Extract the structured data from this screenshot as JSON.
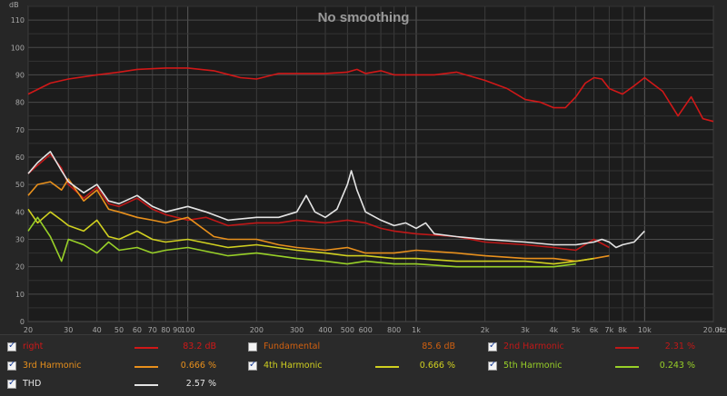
{
  "chart_data": {
    "type": "line",
    "title": "No smoothing",
    "ylabel": "dB",
    "xlabel": "Hz",
    "ylim": [
      0,
      115
    ],
    "xlim": [
      20,
      20000
    ],
    "x_scale": "log",
    "y_ticks": [
      0,
      10,
      20,
      30,
      40,
      50,
      60,
      70,
      80,
      90,
      100,
      110
    ],
    "x_ticks": [
      {
        "v": 20,
        "l": "20"
      },
      {
        "v": 30,
        "l": "30"
      },
      {
        "v": 40,
        "l": "40"
      },
      {
        "v": 50,
        "l": "50"
      },
      {
        "v": 60,
        "l": "60"
      },
      {
        "v": 70,
        "l": "70"
      },
      {
        "v": 80,
        "l": "80"
      },
      {
        "v": 90,
        "l": "90"
      },
      {
        "v": 100,
        "l": "100"
      },
      {
        "v": 200,
        "l": "200"
      },
      {
        "v": 300,
        "l": "300"
      },
      {
        "v": 400,
        "l": "400"
      },
      {
        "v": 500,
        "l": "500"
      },
      {
        "v": 600,
        "l": "600"
      },
      {
        "v": 800,
        "l": "800"
      },
      {
        "v": 1000,
        "l": "1k"
      },
      {
        "v": 2000,
        "l": "2k"
      },
      {
        "v": 3000,
        "l": "3k"
      },
      {
        "v": 4000,
        "l": "4k"
      },
      {
        "v": 5000,
        "l": "5k"
      },
      {
        "v": 6000,
        "l": "6k"
      },
      {
        "v": 7000,
        "l": "7k"
      },
      {
        "v": 8000,
        "l": "8k"
      },
      {
        "v": 10000,
        "l": "10k"
      },
      {
        "v": 20000,
        "l": "20.0k"
      }
    ],
    "grid": true,
    "series": [
      {
        "name": "right",
        "color": "#d01818",
        "x": [
          20,
          25,
          30,
          40,
          50,
          60,
          80,
          100,
          130,
          170,
          200,
          250,
          300,
          400,
          500,
          550,
          600,
          700,
          800,
          1000,
          1200,
          1500,
          2000,
          2500,
          3000,
          3500,
          4000,
          4500,
          5000,
          5500,
          6000,
          6500,
          7000,
          8000,
          9000,
          10000,
          12000,
          14000,
          16000,
          18000,
          20000
        ],
        "y": [
          83,
          87,
          88.5,
          90,
          91,
          92,
          92.5,
          92.5,
          91.5,
          89,
          88.5,
          90.5,
          90.5,
          90.5,
          91,
          92,
          90.5,
          91.5,
          90,
          90,
          90,
          91,
          88,
          85,
          81,
          80,
          78,
          78,
          82,
          87,
          89,
          88.5,
          85,
          83,
          86,
          89,
          84,
          75,
          82,
          74,
          73
        ]
      },
      {
        "name": "2nd Harmonic",
        "color": "#c01818",
        "x": [
          20,
          22,
          25,
          28,
          30,
          35,
          40,
          45,
          50,
          60,
          70,
          80,
          100,
          120,
          150,
          200,
          250,
          300,
          400,
          500,
          600,
          700,
          800,
          1000,
          1500,
          2000,
          3000,
          4000,
          5000,
          6000,
          7000
        ],
        "y": [
          54,
          57,
          61,
          56,
          50,
          45,
          49,
          43,
          42,
          45,
          41,
          39,
          37,
          38,
          35,
          36,
          36,
          37,
          36,
          37,
          36,
          34,
          33,
          32,
          31,
          29,
          28,
          27,
          26,
          30,
          27
        ]
      },
      {
        "name": "3rd Harmonic",
        "color": "#e8901c",
        "x": [
          20,
          22,
          25,
          28,
          30,
          35,
          40,
          45,
          50,
          60,
          70,
          80,
          100,
          130,
          150,
          200,
          250,
          300,
          400,
          500,
          600,
          800,
          1000,
          1500,
          2000,
          3000,
          4000,
          5000,
          6000,
          7000
        ],
        "y": [
          46,
          50,
          51,
          48,
          52,
          44,
          48,
          41,
          40,
          38,
          37,
          36,
          38,
          31,
          30,
          30,
          28,
          27,
          26,
          27,
          25,
          25,
          26,
          25,
          24,
          23,
          23,
          22,
          23,
          24
        ]
      },
      {
        "name": "4th Harmonic",
        "color": "#d0d020",
        "x": [
          20,
          22,
          25,
          28,
          30,
          35,
          40,
          45,
          50,
          60,
          70,
          80,
          100,
          150,
          200,
          300,
          400,
          500,
          600,
          800,
          1000,
          1500,
          2000,
          3000,
          4000,
          5000,
          6000
        ],
        "y": [
          41,
          36,
          40,
          37,
          35,
          33,
          37,
          31,
          30,
          33,
          30,
          29,
          30,
          27,
          28,
          26,
          25,
          24,
          24,
          23,
          23,
          22,
          22,
          22,
          21,
          22,
          23
        ]
      },
      {
        "name": "5th Harmonic",
        "color": "#98d028",
        "x": [
          20,
          22,
          25,
          28,
          30,
          35,
          40,
          45,
          50,
          60,
          70,
          80,
          100,
          150,
          200,
          300,
          400,
          500,
          600,
          800,
          1000,
          1500,
          2000,
          3000,
          4000,
          5000
        ],
        "y": [
          33,
          38,
          31,
          22,
          30,
          28,
          25,
          29,
          26,
          27,
          25,
          26,
          27,
          24,
          25,
          23,
          22,
          21,
          22,
          21,
          21,
          20,
          20,
          20,
          20,
          21
        ]
      },
      {
        "name": "THD",
        "color": "#e4e4e4",
        "x": [
          20,
          22,
          25,
          28,
          30,
          35,
          40,
          45,
          50,
          60,
          70,
          80,
          100,
          120,
          150,
          200,
          250,
          300,
          330,
          360,
          400,
          450,
          500,
          520,
          550,
          600,
          700,
          800,
          900,
          1000,
          1100,
          1200,
          1500,
          2000,
          3000,
          4000,
          5000,
          6000,
          6500,
          7000,
          7500,
          8000,
          9000,
          10000
        ],
        "y": [
          54,
          58,
          62,
          55,
          51,
          47,
          50,
          44,
          43,
          46,
          42,
          40,
          42,
          40,
          37,
          38,
          38,
          40,
          46,
          40,
          38,
          41,
          50,
          55,
          48,
          40,
          37,
          35,
          36,
          34,
          36,
          32,
          31,
          30,
          29,
          28,
          28,
          29,
          30,
          29,
          27,
          28,
          29,
          33
        ]
      }
    ]
  },
  "legend": {
    "items": [
      {
        "label": "right",
        "value": "83.2 dB",
        "checked": true,
        "color": "#d01818"
      },
      {
        "label": "Fundamental",
        "value": "85.6 dB",
        "checked": false,
        "color": "#d06010"
      },
      {
        "label": "2nd Harmonic",
        "value": "2.31 %",
        "checked": true,
        "color": "#c01818"
      },
      {
        "label": "3rd Harmonic",
        "value": "0.666 %",
        "checked": true,
        "color": "#e8901c"
      },
      {
        "label": "4th Harmonic",
        "value": "0.666 %",
        "checked": true,
        "color": "#d0d020"
      },
      {
        "label": "5th Harmonic",
        "value": "0.243 %",
        "checked": true,
        "color": "#98d028"
      },
      {
        "label": "THD",
        "value": "2.57 %",
        "checked": true,
        "color": "#e4e4e4"
      }
    ]
  }
}
